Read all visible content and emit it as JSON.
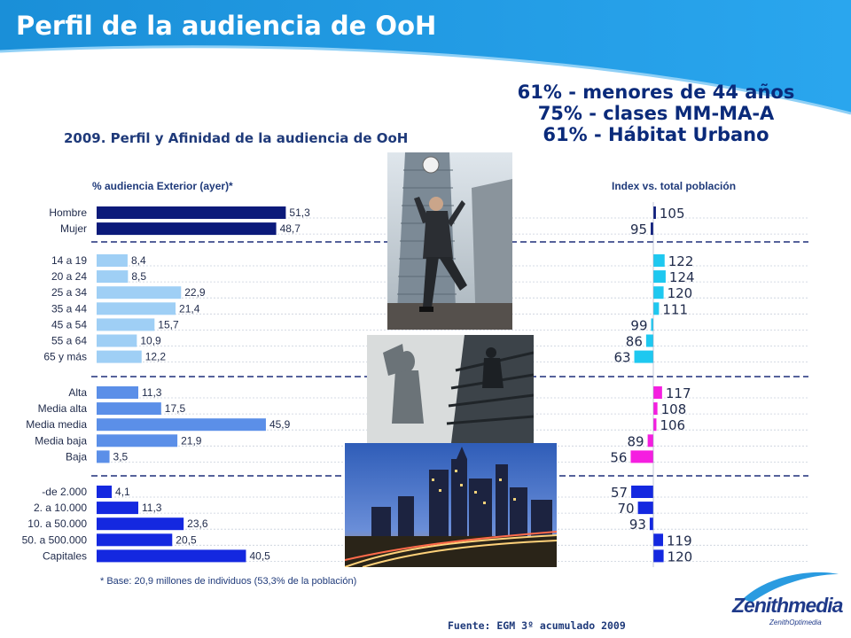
{
  "page": {
    "title": "Perfil de la audiencia de OoH",
    "highlights": [
      "61% - menores de 44 años",
      "75% - clases MM-MA-A",
      "61% - Hábitat Urbano"
    ],
    "chart_title": "2009. Perfil y Afinidad de la audiencia de OoH",
    "left_header": "% audiencia Exterior (ayer)*",
    "right_header": "Index vs. total población",
    "footnote": "* Base: 20,9  millones de individuos (53,3% de la población)",
    "source": "Fuente: EGM 3º acumulado 2009",
    "logo": {
      "name": "Zenithmedia",
      "sub": "ZenithOptimedia"
    },
    "colors": {
      "header": "#1a8fd8",
      "title_text": "#ffffff",
      "navy_text": "#1f3a7a"
    }
  },
  "chart_data": [
    {
      "type": "bar",
      "orientation": "horizontal",
      "title": "% audiencia Exterior (ayer)*",
      "groups": [
        {
          "color": "#0b1a7a",
          "categories": [
            "Hombre",
            "Mujer"
          ],
          "values": [
            "51,3",
            "48,7"
          ]
        },
        {
          "color": "#9fcff5",
          "categories": [
            "14 a 19",
            "20 a 24",
            "25 a 34",
            "35 a 44",
            "45 a 54",
            "55 a 64",
            "65 y más"
          ],
          "values": [
            "8,4",
            "8,5",
            "22,9",
            "21,4",
            "15,7",
            "10,9",
            "12,2"
          ]
        },
        {
          "color": "#5b8fe8",
          "categories": [
            "Alta",
            "Media alta",
            "Media media",
            "Media baja",
            "Baja"
          ],
          "values": [
            "11,3",
            "17,5",
            "45,9",
            "21,9",
            "3,5"
          ]
        },
        {
          "color": "#1428e0",
          "categories": [
            "-de 2.000",
            "2. a 10.000",
            "10. a 50.000",
            "50. a 500.000",
            "Capitales"
          ],
          "values": [
            "4,1",
            "11,3",
            "23,6",
            "20,5",
            "40,5"
          ]
        }
      ]
    },
    {
      "type": "bar",
      "orientation": "horizontal",
      "title": "Index vs. total población",
      "baseline": 100,
      "groups": [
        {
          "color": "#0b1a7a",
          "values": [
            105,
            95
          ]
        },
        {
          "color": "#1ec8f0",
          "values": [
            122,
            124,
            120,
            111,
            99,
            86,
            63
          ]
        },
        {
          "color": "#f51ee0",
          "values": [
            117,
            108,
            106,
            89,
            56
          ]
        },
        {
          "color": "#1428e0",
          "values": [
            57,
            70,
            93,
            119,
            120
          ]
        }
      ]
    }
  ]
}
